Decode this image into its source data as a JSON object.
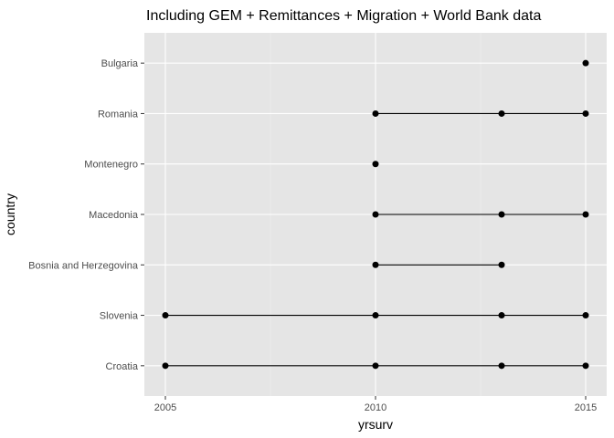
{
  "chart_data": {
    "type": "scatter",
    "title": "Including GEM + Remittances + Migration + World Bank data",
    "xlabel": "yrsurv",
    "ylabel": "country",
    "xlim": [
      2005,
      2015
    ],
    "xticks": [
      2005,
      2010,
      2015
    ],
    "grid": true,
    "categories": [
      "Croatia",
      "Slovenia",
      "Bosnia and Herzegovina",
      "Macedonia",
      "Montenegro",
      "Romania",
      "Bulgaria"
    ],
    "series": [
      {
        "country": "Croatia",
        "years": [
          2005,
          2010,
          2013,
          2015
        ]
      },
      {
        "country": "Slovenia",
        "years": [
          2005,
          2010,
          2013,
          2015
        ]
      },
      {
        "country": "Bosnia and Herzegovina",
        "years": [
          2010,
          2013
        ]
      },
      {
        "country": "Macedonia",
        "years": [
          2010,
          2013,
          2015
        ]
      },
      {
        "country": "Montenegro",
        "years": [
          2010
        ]
      },
      {
        "country": "Romania",
        "years": [
          2010,
          2013,
          2015
        ]
      },
      {
        "country": "Bulgaria",
        "years": [
          2015
        ]
      }
    ]
  }
}
